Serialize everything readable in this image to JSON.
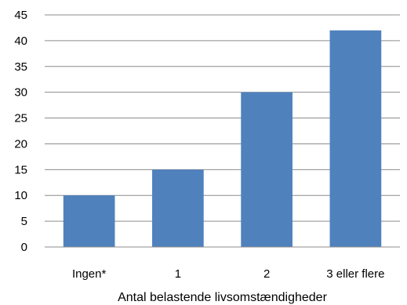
{
  "chart_data": {
    "type": "bar",
    "categories": [
      "Ingen*",
      "1",
      "2",
      "3 eller flere"
    ],
    "values": [
      10,
      15,
      30,
      42
    ],
    "title": "",
    "xlabel": "Antal belastende livsomstændigheder",
    "ylabel": "",
    "ylim": [
      0,
      45
    ],
    "yticks": [
      0,
      5,
      10,
      15,
      20,
      25,
      30,
      35,
      40,
      45
    ],
    "grid": true,
    "legend": "none",
    "bar_color": "#4f81bd",
    "grid_color": "#8c8c8c"
  }
}
